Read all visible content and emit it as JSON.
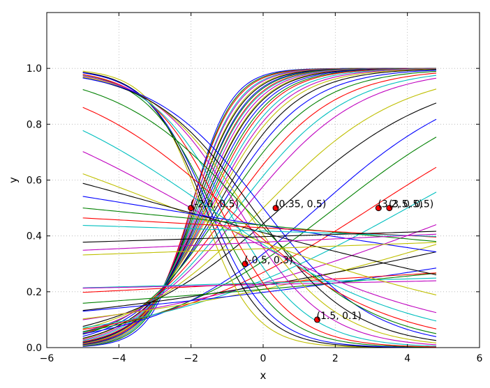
{
  "chart_data": {
    "type": "line",
    "title": "",
    "xlabel": "x",
    "ylabel": "y",
    "xlim": [
      -6,
      6
    ],
    "ylim": [
      0,
      1.2
    ],
    "grid": true,
    "x_range": [
      -5,
      4.8
    ],
    "xticks": [
      "−6",
      "−4",
      "−2",
      "0",
      "2",
      "4",
      "6"
    ],
    "xtick_values": [
      -6,
      -4,
      -2,
      0,
      2,
      4,
      6
    ],
    "yticks": [
      "0.0",
      "0.2",
      "0.4",
      "0.6",
      "0.8",
      "1.0"
    ],
    "ytick_values": [
      0,
      0.2,
      0.4,
      0.6,
      0.8,
      1.0
    ],
    "color_cycle": [
      "#0000ff",
      "#008000",
      "#ff0000",
      "#00bfbf",
      "#bf00bf",
      "#bfbf00",
      "#000000"
    ],
    "curve_function": "1 / (1 + exp(-(x - x0) / s))",
    "series": [
      {
        "x0": -2.0,
        "s": 0.55
      },
      {
        "x0": -2.0,
        "s": 0.58
      },
      {
        "x0": -2.0,
        "s": 0.6
      },
      {
        "x0": -1.95,
        "s": 0.62
      },
      {
        "x0": -1.95,
        "s": 0.64
      },
      {
        "x0": -1.9,
        "s": 0.66
      },
      {
        "x0": -1.9,
        "s": 0.68
      },
      {
        "x0": -1.85,
        "s": 0.7
      },
      {
        "x0": -1.85,
        "s": 0.72
      },
      {
        "x0": -1.8,
        "s": 0.74
      },
      {
        "x0": -1.8,
        "s": 0.76
      },
      {
        "x0": -1.75,
        "s": 0.78
      },
      {
        "x0": -1.7,
        "s": 0.8
      },
      {
        "x0": -1.7,
        "s": 0.82
      },
      {
        "x0": -1.65,
        "s": 0.85
      },
      {
        "x0": -1.6,
        "s": 0.88
      },
      {
        "x0": -1.55,
        "s": 0.9
      },
      {
        "x0": -1.5,
        "s": 0.95
      },
      {
        "x0": -1.45,
        "s": 1.0
      },
      {
        "x0": -1.4,
        "s": 1.05
      },
      {
        "x0": -1.3,
        "s": 1.1
      },
      {
        "x0": -1.2,
        "s": 1.2
      },
      {
        "x0": -1.1,
        "s": 1.3
      },
      {
        "x0": -0.9,
        "s": 1.4
      },
      {
        "x0": -0.7,
        "s": 1.5
      },
      {
        "x0": -0.5,
        "s": 1.6
      },
      {
        "x0": 0.0,
        "s": 1.9
      },
      {
        "x0": 0.5,
        "s": 2.2
      },
      {
        "x0": 1.5,
        "s": 2.2
      },
      {
        "x0": 2.0,
        "s": 2.5
      },
      {
        "x0": 3.0,
        "s": 3.0
      },
      {
        "x0": 4.0,
        "s": 3.5
      },
      {
        "x0": 6.0,
        "s": 5.0
      },
      {
        "x0": 8.0,
        "s": 6.0
      },
      {
        "x0": 10.0,
        "s": 8.0
      },
      {
        "x0": 14.0,
        "s": 10.0
      },
      {
        "x0": 20.0,
        "s": 15.0
      },
      {
        "x0": 30.0,
        "s": 25.0
      },
      {
        "x0": 60.0,
        "s": 50.0
      },
      {
        "x0": 80.0,
        "s": 65.0
      },
      {
        "x0": -1.7,
        "s": -0.72
      },
      {
        "x0": -1.6,
        "s": -0.8
      },
      {
        "x0": -1.5,
        "s": -0.85
      },
      {
        "x0": -1.4,
        "s": -0.95
      },
      {
        "x0": -1.2,
        "s": -1.0
      },
      {
        "x0": -1.0,
        "s": -1.1
      },
      {
        "x0": -0.7,
        "s": -1.2
      },
      {
        "x0": -0.5,
        "s": -1.3
      },
      {
        "x0": -0.3,
        "s": -1.4
      },
      {
        "x0": 0.0,
        "s": -1.5
      },
      {
        "x0": -0.5,
        "s": -1.8
      },
      {
        "x0": -1.0,
        "s": -2.2
      },
      {
        "x0": -1.5,
        "s": -2.8
      },
      {
        "x0": -2.0,
        "s": -3.5
      },
      {
        "x0": -2.5,
        "s": -5.0
      },
      {
        "x0": -2.5,
        "s": -7.0
      },
      {
        "x0": -3.0,
        "s": -12.0
      },
      {
        "x0": -5.0,
        "s": -20.0
      },
      {
        "x0": -10.0,
        "s": -35.0
      },
      {
        "x0": -20.0,
        "s": -60.0
      },
      {
        "x0": 20.0,
        "s": 40.0
      },
      {
        "x0": 30.0,
        "s": 50.0
      },
      {
        "x0": 25.0,
        "s": 60.0
      }
    ],
    "points": [
      {
        "x": -2.0,
        "y": 0.5,
        "label": "(-2.0, 0.5)"
      },
      {
        "x": 0.35,
        "y": 0.5,
        "label": "(0.35, 0.5)"
      },
      {
        "x": 3.2,
        "y": 0.5,
        "label": "(3.2, 0.5)"
      },
      {
        "x": 3.5,
        "y": 0.5,
        "label": "(3.5, 0.5)"
      },
      {
        "x": -0.5,
        "y": 0.3,
        "label": "(-0.5, 0.3)"
      },
      {
        "x": 1.5,
        "y": 0.1,
        "label": "(1.5, 0.1)"
      }
    ]
  }
}
